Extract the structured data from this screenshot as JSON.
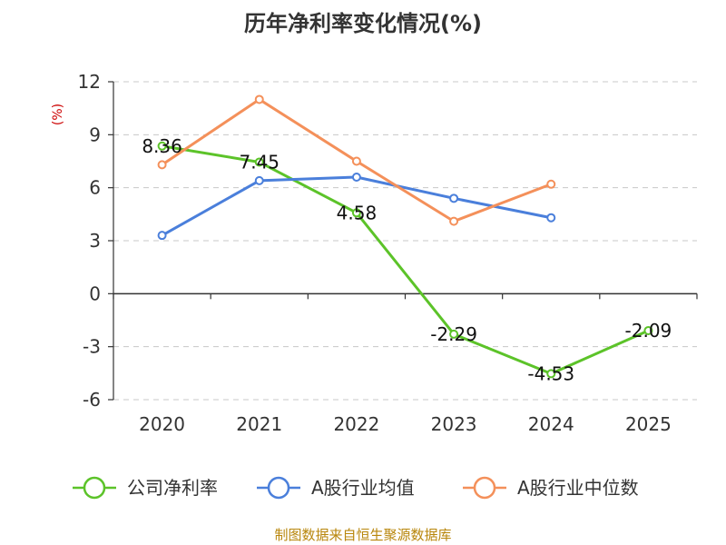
{
  "chart_data": {
    "type": "line",
    "title": "历年净利率变化情况(%)",
    "ylabel": "(%)",
    "categories": [
      "2020",
      "2021",
      "2022",
      "2023",
      "2024",
      "2025"
    ],
    "ylim": [
      -6,
      12
    ],
    "yticks": [
      12,
      9,
      6,
      3,
      0,
      -3,
      -6
    ],
    "ytick_labels": [
      "12",
      "9",
      "6",
      "3",
      "0",
      "-3",
      "-6"
    ],
    "grid": true,
    "legend_position": "bottom",
    "series": [
      {
        "name": "公司净利率",
        "color": "#5cc329",
        "values": [
          8.36,
          7.45,
          4.58,
          -2.29,
          -4.53,
          -2.09
        ],
        "labels": [
          "8.36",
          "7.45",
          "4.58",
          "-2.29",
          "-4.53",
          "-2.09"
        ]
      },
      {
        "name": "A股行业均值",
        "color": "#4a7fdb",
        "values": [
          3.3,
          6.4,
          6.6,
          5.4,
          4.3,
          null
        ]
      },
      {
        "name": "A股行业中位数",
        "color": "#f4905a",
        "values": [
          7.3,
          11.0,
          7.5,
          4.1,
          6.2,
          null
        ]
      }
    ]
  },
  "footer": {
    "source": "制图数据来自恒生聚源数据库"
  }
}
